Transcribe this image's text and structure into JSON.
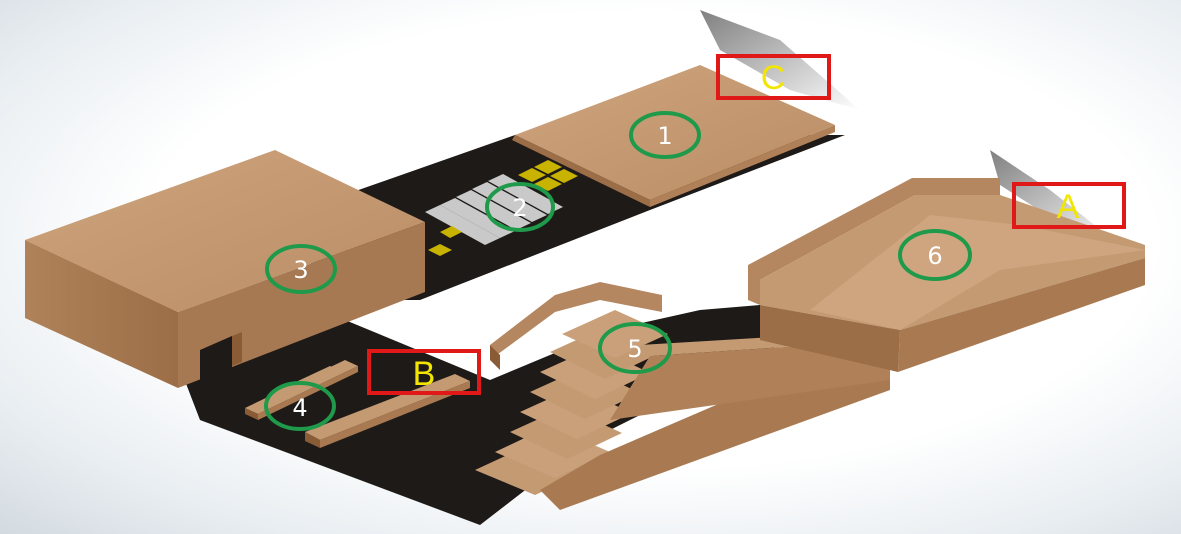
{
  "markers": [
    {
      "id": "1",
      "label": "1"
    },
    {
      "id": "2",
      "label": "2"
    },
    {
      "id": "3",
      "label": "3"
    },
    {
      "id": "4",
      "label": "4"
    },
    {
      "id": "5",
      "label": "5"
    },
    {
      "id": "6",
      "label": "6"
    }
  ],
  "boxes": [
    {
      "id": "A",
      "label": "A"
    },
    {
      "id": "B",
      "label": "B"
    },
    {
      "id": "C",
      "label": "C"
    }
  ],
  "colors": {
    "wood_top": "#c49a73",
    "wood_side": "#a97a52",
    "wood_dark": "#8a5c36",
    "ground": "#1e1a18",
    "crosswalk_stripe": "#c9c9c9",
    "tactile_yellow": "#c8b400",
    "marker_ring": "#1e9a4a",
    "box_outline": "#e01818",
    "box_letter": "#f2e600",
    "marker_number": "#ffffff"
  }
}
